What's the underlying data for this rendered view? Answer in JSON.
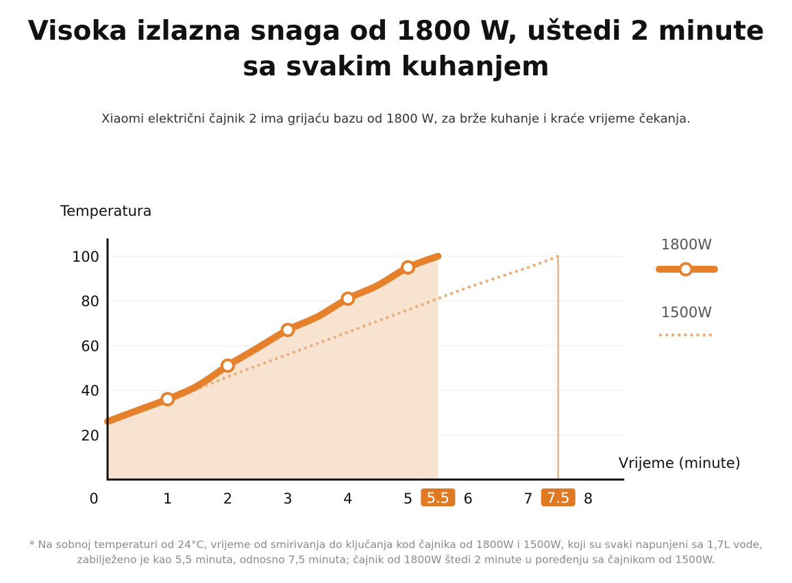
{
  "header": {
    "title": "Visoka izlazna snaga od 1800 W, uštedi 2 minute sa svakim kuhanjem",
    "subtitle": "Xiaomi električni čajnik 2 ima grijaću bazu od 1800 W, za brže kuhanje i kraće vrijeme čekanja."
  },
  "footnote": "* Na sobnoj temperaturi od 24°C, vrijeme od smirivanja do ključanja kod čajnika od 1800W i 1500W, koji su svaki napunjeni sa 1,7L vode, zabilježeno je kao 5,5 minuta, odnosno 7,5 minuta; čajnik od 1800W štedi 2 minute u poređenju sa čajnikom od 1500W.",
  "colors": {
    "accent": "#e5802b",
    "dotted": "#eab07c",
    "fill": "#f8e3d1",
    "grid": "#ececec",
    "axis": "#111111",
    "highlight_label_bg": "#e07a22"
  },
  "chart_data": {
    "type": "line",
    "xlabel": "Vrijeme (minute)",
    "ylabel": "Temperatura",
    "xlim": [
      0,
      8.6
    ],
    "ylim": [
      0,
      110
    ],
    "x_ticks": [
      "0",
      "1",
      "2",
      "3",
      "4",
      "5",
      "6",
      "7",
      "8"
    ],
    "y_ticks": [
      "20",
      "40",
      "60",
      "80",
      "100"
    ],
    "highlight_ticks": [
      {
        "value": 5.5,
        "label": "5.5"
      },
      {
        "value": 7.5,
        "label": "7.5"
      }
    ],
    "grid": true,
    "legend_position": "right",
    "series": [
      {
        "name": "1800W",
        "style": "solid-with-markers",
        "x": [
          0,
          0.5,
          1,
          1.5,
          2,
          2.5,
          3,
          3.5,
          4,
          4.5,
          5,
          5.5
        ],
        "y": [
          26,
          31,
          36,
          42,
          51,
          59,
          67,
          73,
          81,
          87,
          95,
          100
        ],
        "markers_x": [
          1,
          2,
          3,
          4,
          5
        ]
      },
      {
        "name": "1500W",
        "style": "dotted",
        "x": [
          0,
          1,
          2,
          3,
          4,
          5,
          6,
          7,
          7.5
        ],
        "y": [
          25,
          35,
          46,
          56,
          66,
          76,
          86,
          95,
          100
        ]
      }
    ]
  }
}
